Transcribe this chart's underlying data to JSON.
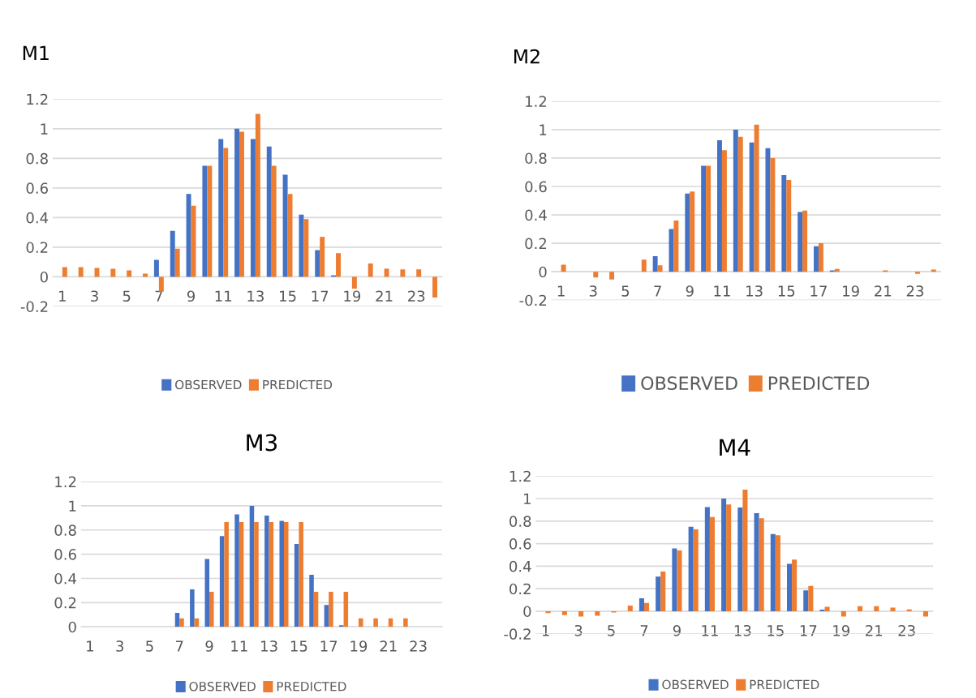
{
  "chart_data": [
    {
      "type": "bar",
      "title": "M1",
      "categories": [
        "1",
        null,
        "3",
        null,
        "5",
        null,
        "7",
        null,
        "9",
        null,
        "11",
        null,
        "13",
        null,
        "15",
        null,
        "17",
        null,
        "19",
        null,
        "21",
        null,
        "23",
        null
      ],
      "ylim": [
        -0.2,
        1.2
      ],
      "yticks": [
        -0.2,
        0,
        0.2,
        0.4,
        0.6,
        0.8,
        1,
        1.2
      ],
      "grid": "y",
      "legend": "bottom",
      "series": [
        {
          "name": "OBSERVED",
          "color": "#4472c4",
          "values": [
            0,
            0,
            0,
            0,
            0,
            0,
            0.115,
            0.31,
            0.56,
            0.75,
            0.93,
            1.0,
            0.93,
            0.88,
            0.69,
            0.42,
            0.18,
            0.01,
            0,
            0,
            0,
            0,
            0,
            0
          ]
        },
        {
          "name": "PREDICTED",
          "color": "#ed7d31",
          "values": [
            0.066,
            0.066,
            0.06,
            0.055,
            0.044,
            0.022,
            -0.1,
            0.19,
            0.48,
            0.75,
            0.87,
            0.98,
            1.1,
            0.75,
            0.56,
            0.39,
            0.27,
            0.16,
            -0.08,
            0.09,
            0.055,
            0.05,
            0.05,
            -0.14
          ]
        }
      ]
    },
    {
      "type": "bar",
      "title": "M2",
      "categories": [
        "1",
        null,
        "3",
        null,
        "5",
        null,
        "7",
        null,
        "9",
        null,
        "11",
        null,
        "13",
        null,
        "15",
        null,
        "17",
        null,
        "19",
        null,
        "21",
        null,
        "23",
        null
      ],
      "ylim": [
        -0.2,
        1.2
      ],
      "yticks": [
        -0.2,
        0,
        0.2,
        0.4,
        0.6,
        0.8,
        1,
        1.2
      ],
      "grid": "y",
      "legend": "bottom",
      "series": [
        {
          "name": "OBSERVED",
          "color": "#4472c4",
          "values": [
            0,
            0,
            0,
            0,
            0,
            0,
            0.11,
            0.3,
            0.55,
            0.745,
            0.925,
            1.0,
            0.91,
            0.87,
            0.68,
            0.42,
            0.18,
            0.01,
            0,
            0,
            0,
            0,
            0,
            0
          ]
        },
        {
          "name": "PREDICTED",
          "color": "#ed7d31",
          "values": [
            0.05,
            0,
            -0.04,
            -0.055,
            0,
            0.085,
            0.045,
            0.36,
            0.565,
            0.745,
            0.855,
            0.95,
            1.035,
            0.8,
            0.645,
            0.43,
            0.2,
            0.02,
            0,
            0,
            0.01,
            0,
            -0.015,
            0.015
          ]
        }
      ]
    },
    {
      "type": "bar",
      "title": "M3",
      "categories": [
        "1",
        null,
        "3",
        null,
        "5",
        null,
        "7",
        null,
        "9",
        null,
        "11",
        null,
        "13",
        null,
        "15",
        null,
        "17",
        null,
        "19",
        null,
        "21",
        null,
        "23",
        null
      ],
      "ylim": [
        0,
        1.2
      ],
      "yticks": [
        0,
        0.2,
        0.4,
        0.6,
        0.8,
        1,
        1.2
      ],
      "grid": "y",
      "legend": "bottom",
      "series": [
        {
          "name": "OBSERVED",
          "color": "#4472c4",
          "values": [
            0,
            0,
            0,
            0,
            0,
            0,
            0.115,
            0.31,
            0.56,
            0.75,
            0.93,
            1.0,
            0.92,
            0.875,
            0.685,
            0.43,
            0.18,
            0.013,
            0,
            0,
            0,
            0,
            0,
            0
          ]
        },
        {
          "name": "PREDICTED",
          "color": "#ed7d31",
          "values": [
            0,
            0,
            0,
            0,
            0,
            0,
            0.07,
            0.07,
            0.29,
            0.865,
            0.865,
            0.865,
            0.865,
            0.865,
            0.865,
            0.29,
            0.29,
            0.29,
            0.07,
            0.07,
            0.07,
            0.07,
            0,
            0
          ]
        }
      ]
    },
    {
      "type": "bar",
      "title": "M4",
      "categories": [
        "1",
        null,
        "3",
        null,
        "5",
        null,
        "7",
        null,
        "9",
        null,
        "11",
        null,
        "13",
        null,
        "15",
        null,
        "17",
        null,
        "19",
        null,
        "21",
        null,
        "23",
        null
      ],
      "ylim": [
        -0.2,
        1.2
      ],
      "yticks": [
        -0.2,
        0,
        0.2,
        0.4,
        0.6,
        0.8,
        1,
        1.2
      ],
      "grid": "y",
      "legend": "bottom",
      "series": [
        {
          "name": "OBSERVED",
          "color": "#4472c4",
          "values": [
            0,
            0,
            0,
            0,
            0,
            0,
            0.115,
            0.307,
            0.557,
            0.75,
            0.924,
            1.0,
            0.92,
            0.87,
            0.685,
            0.42,
            0.185,
            0.015,
            0,
            0,
            0,
            0,
            0,
            0
          ]
        },
        {
          "name": "PREDICTED",
          "color": "#ed7d31",
          "values": [
            -0.017,
            -0.035,
            -0.047,
            -0.04,
            -0.01,
            0.05,
            0.074,
            0.353,
            0.54,
            0.726,
            0.837,
            0.948,
            1.08,
            0.825,
            0.674,
            0.458,
            0.225,
            0.04,
            -0.047,
            0.045,
            0.045,
            0.033,
            0.016,
            -0.047
          ]
        }
      ]
    }
  ]
}
